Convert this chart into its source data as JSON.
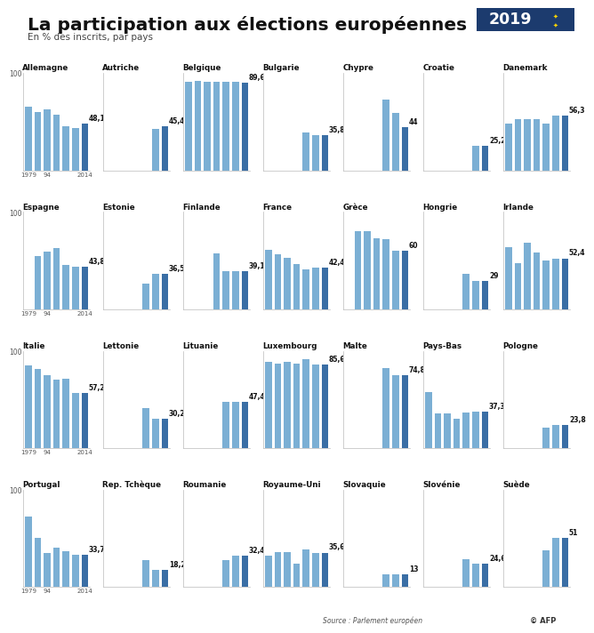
{
  "title": "La participation aux élections européennes",
  "subtitle": "En % des inscrits, par pays",
  "year_badge": "2019",
  "countries": [
    {
      "name": "Allemagne",
      "values": [
        65.7,
        60.0,
        62.3,
        56.8,
        45.2,
        43.0,
        48.1
      ],
      "last_label": "48,1",
      "row": 0,
      "col": 0
    },
    {
      "name": "Autriche",
      "values": [
        null,
        null,
        null,
        null,
        null,
        42.4,
        45.4
      ],
      "last_label": "45,4",
      "row": 0,
      "col": 1
    },
    {
      "name": "Belgique",
      "values": [
        91.4,
        92.2,
        90.7,
        90.7,
        91.1,
        90.8,
        89.6
      ],
      "last_label": "89,6",
      "row": 0,
      "col": 2
    },
    {
      "name": "Bulgarie",
      "values": [
        null,
        null,
        null,
        null,
        39.0,
        35.8,
        35.8
      ],
      "last_label": "35,8",
      "row": 0,
      "col": 3
    },
    {
      "name": "Chypre",
      "values": [
        null,
        null,
        null,
        null,
        72.5,
        59.4,
        44.0
      ],
      "last_label": "44",
      "row": 0,
      "col": 4
    },
    {
      "name": "Croatie",
      "values": [
        null,
        null,
        null,
        null,
        null,
        25.2,
        25.2
      ],
      "last_label": "25,2",
      "row": 0,
      "col": 5
    },
    {
      "name": "Danemark",
      "values": [
        47.8,
        52.9,
        52.9,
        52.9,
        47.9,
        56.3,
        56.3
      ],
      "last_label": "56,3",
      "row": 0,
      "col": 6
    },
    {
      "name": "Espagne",
      "values": [
        null,
        54.6,
        59.1,
        63.0,
        45.1,
        43.8,
        43.8
      ],
      "last_label": "43,8",
      "row": 1,
      "col": 0
    },
    {
      "name": "Estonie",
      "values": [
        null,
        null,
        null,
        null,
        26.8,
        36.5,
        36.5
      ],
      "last_label": "36,5",
      "row": 1,
      "col": 1
    },
    {
      "name": "Finlande",
      "values": [
        null,
        null,
        null,
        57.6,
        39.4,
        39.1,
        39.1
      ],
      "last_label": "39,1",
      "row": 1,
      "col": 2
    },
    {
      "name": "France",
      "values": [
        60.7,
        56.7,
        52.7,
        46.8,
        40.6,
        42.4,
        42.4
      ],
      "last_label": "42,4",
      "row": 1,
      "col": 3
    },
    {
      "name": "Grèce",
      "values": [
        null,
        79.9,
        80.0,
        73.2,
        72.2,
        60.0,
        60.0
      ],
      "last_label": "60",
      "row": 1,
      "col": 4
    },
    {
      "name": "Hongrie",
      "values": [
        null,
        null,
        null,
        null,
        36.3,
        29.0,
        29.0
      ],
      "last_label": "29",
      "row": 1,
      "col": 5
    },
    {
      "name": "Irlande",
      "values": [
        63.6,
        47.6,
        68.3,
        58.6,
        50.0,
        52.4,
        52.4
      ],
      "last_label": "52,4",
      "row": 1,
      "col": 6
    },
    {
      "name": "Italie",
      "values": [
        85.5,
        81.5,
        74.8,
        70.8,
        71.7,
        57.2,
        57.2
      ],
      "last_label": "57,2",
      "row": 2,
      "col": 0
    },
    {
      "name": "Lettonie",
      "values": [
        null,
        null,
        null,
        null,
        41.3,
        30.2,
        30.2
      ],
      "last_label": "30,2",
      "row": 2,
      "col": 1
    },
    {
      "name": "Lituanie",
      "values": [
        null,
        null,
        null,
        null,
        47.3,
        47.4,
        47.4
      ],
      "last_label": "47,4",
      "row": 2,
      "col": 2
    },
    {
      "name": "Luxembourg",
      "values": [
        88.9,
        87.4,
        88.5,
        87.3,
        91.4,
        85.6,
        85.6
      ],
      "last_label": "85,6",
      "row": 2,
      "col": 3
    },
    {
      "name": "Malte",
      "values": [
        null,
        null,
        null,
        null,
        82.4,
        74.8,
        74.8
      ],
      "last_label": "74,8",
      "row": 2,
      "col": 4
    },
    {
      "name": "Pays-Bas",
      "values": [
        57.8,
        35.6,
        35.7,
        30.0,
        36.8,
        37.3,
        37.3
      ],
      "last_label": "37,3",
      "row": 2,
      "col": 5
    },
    {
      "name": "Pologne",
      "values": [
        null,
        null,
        null,
        null,
        20.9,
        23.8,
        23.8
      ],
      "last_label": "23,8",
      "row": 2,
      "col": 6
    },
    {
      "name": "Portugal",
      "values": [
        72.4,
        51.1,
        35.5,
        40.4,
        36.8,
        33.7,
        33.7
      ],
      "last_label": "33,7",
      "row": 3,
      "col": 0
    },
    {
      "name": "Rep. Tchèque",
      "values": [
        null,
        null,
        null,
        null,
        28.3,
        18.2,
        18.2
      ],
      "last_label": "18,2",
      "row": 3,
      "col": 1
    },
    {
      "name": "Roumanie",
      "values": [
        null,
        null,
        null,
        null,
        27.7,
        32.4,
        32.4
      ],
      "last_label": "32,4",
      "row": 3,
      "col": 2
    },
    {
      "name": "Royaume-Uni",
      "values": [
        32.4,
        36.4,
        36.4,
        24.1,
        38.5,
        35.6,
        35.6
      ],
      "last_label": "35,6",
      "row": 3,
      "col": 3
    },
    {
      "name": "Slovaquie",
      "values": [
        null,
        null,
        null,
        null,
        13.1,
        13.0,
        13.0
      ],
      "last_label": "13",
      "row": 3,
      "col": 4
    },
    {
      "name": "Slovénie",
      "values": [
        null,
        null,
        null,
        null,
        28.4,
        24.6,
        24.6
      ],
      "last_label": "24,6",
      "row": 3,
      "col": 5
    },
    {
      "name": "Suède",
      "values": [
        null,
        null,
        null,
        null,
        37.9,
        51.0,
        51.0
      ],
      "last_label": "51",
      "row": 3,
      "col": 6
    }
  ],
  "bar_color_light": "#7BAFD4",
  "bar_color_dark": "#3A6EA5",
  "source_text": "Source : Parlement européen",
  "afp_text": "© AFP"
}
